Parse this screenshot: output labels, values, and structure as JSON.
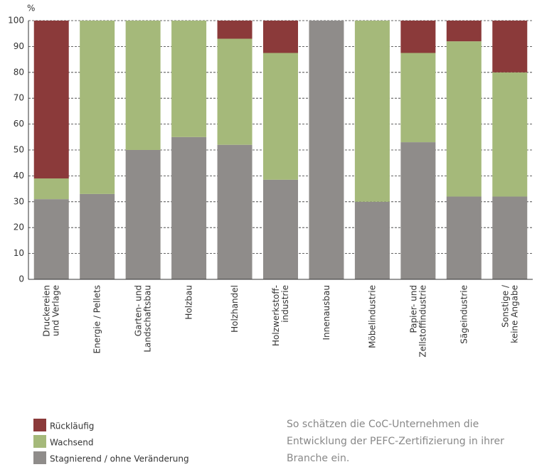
{
  "chart_data": {
    "type": "stacked_bar",
    "y_label": "%",
    "categories": [
      [
        "Druckereien",
        "und Verlage"
      ],
      [
        "Energie / Pellets"
      ],
      [
        "Garten- und",
        "Landschaftsbau"
      ],
      [
        "Holzbau"
      ],
      [
        "Holzhandel"
      ],
      [
        "Holzwerkstoff-",
        "industrie"
      ],
      [
        "Innenausbau"
      ],
      [
        "Möbelindustrie"
      ],
      [
        "Papier- und",
        "Zellstoffindustrie"
      ],
      [
        "Sägeindustrie"
      ],
      [
        "Sonstige /",
        "keine Angabe"
      ]
    ],
    "series": [
      {
        "name": "Stagnierend / ohne Veränderung",
        "color": "#8f8c8a",
        "values": [
          31,
          33,
          50,
          55,
          52,
          38.5,
          100,
          30,
          53,
          32,
          32
        ]
      },
      {
        "name": "Wachsend",
        "color": "#a5b97a",
        "values": [
          8,
          67,
          50,
          45,
          41,
          49,
          0,
          70,
          34.5,
          60,
          48
        ]
      },
      {
        "name": "Rückläufig",
        "color": "#8b3a3a",
        "values": [
          61,
          0,
          0,
          0,
          7,
          12.5,
          0,
          0,
          12.5,
          8,
          20
        ]
      }
    ],
    "ylim": [
      0,
      100
    ],
    "yticks": [
      0,
      10,
      20,
      30,
      40,
      50,
      60,
      70,
      80,
      90,
      100
    ],
    "grid": true,
    "note": [
      "So schätzen die CoC-Unternehmen die",
      "Entwicklung der PEFC-Zertifizierung in ihrer",
      "Branche ein."
    ]
  }
}
